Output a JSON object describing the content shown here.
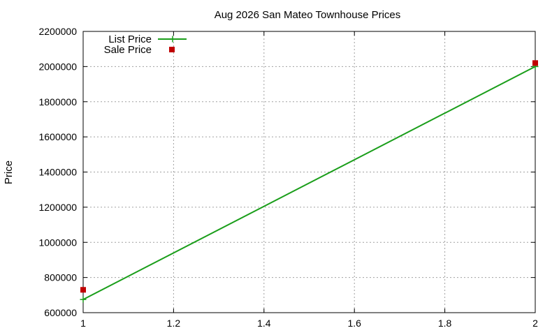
{
  "chart_data": {
    "type": "line",
    "title": "Aug 2026 San Mateo Townhouse Prices",
    "xlabel": "",
    "ylabel": "Price",
    "xlim": [
      1,
      2
    ],
    "ylim": [
      600000,
      2200000
    ],
    "x_ticks": [
      "1",
      "1.2",
      "1.4",
      "1.6",
      "1.8",
      "2"
    ],
    "y_ticks": [
      "600000",
      "800000",
      "1000000",
      "1200000",
      "1400000",
      "1600000",
      "1800000",
      "2000000",
      "2200000"
    ],
    "grid": true,
    "legend_position": "top-left",
    "series": [
      {
        "name": "List Price",
        "style": "line-with-plus-markers",
        "color": "#1a9e1a",
        "x": [
          1,
          2
        ],
        "y": [
          675000,
          2000000
        ]
      },
      {
        "name": "Sale Price",
        "style": "square-markers",
        "color": "#c00000",
        "x": [
          1,
          2
        ],
        "y": [
          730000,
          2020000
        ]
      }
    ]
  }
}
